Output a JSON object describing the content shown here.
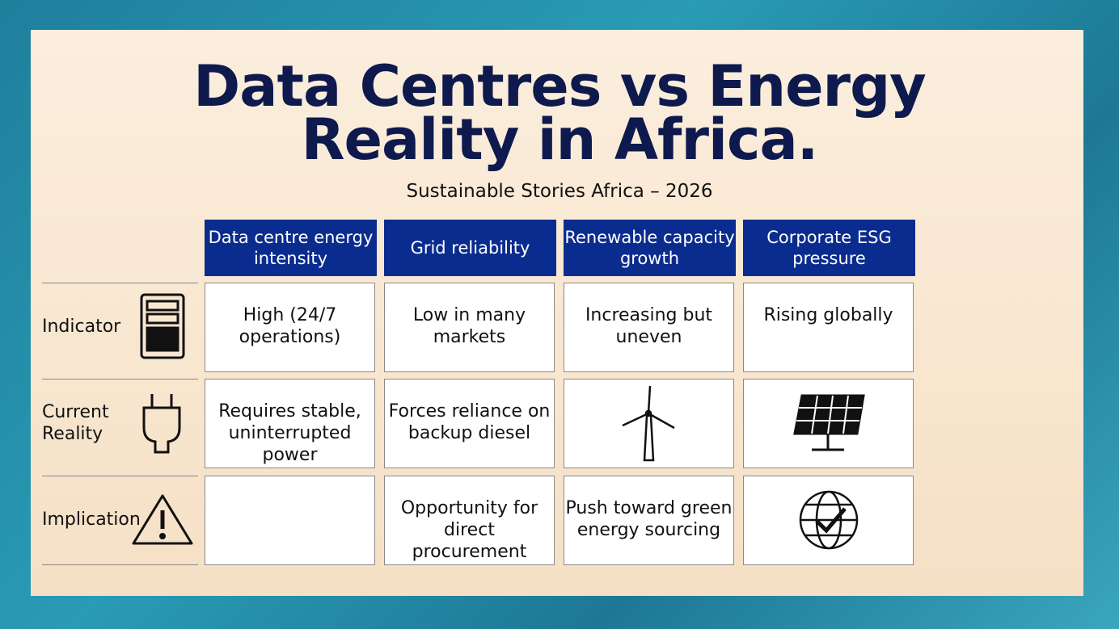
{
  "header": {
    "title": [
      "Data Centres vs Energy",
      "Reality in Africa."
    ],
    "subtitle": "Sustainable Stories Africa – 2026"
  },
  "table": {
    "columns": [
      "Data centre energy intensity",
      "Grid reliability",
      "Renewable capacity growth",
      "Corporate ESG pressure"
    ],
    "rows": [
      {
        "label": "Indicator",
        "cells": [
          "High (24/7 operations)",
          "Low in many markets",
          "Increasing but uneven",
          "Rising globally"
        ]
      },
      {
        "label": "Current Reality",
        "cells": [
          "Requires stable, uninterrupted power",
          "Forces reliance on backup diesel",
          null,
          null
        ]
      },
      {
        "label": "Implication",
        "cells": [
          null,
          "Opportunity for direct procurement",
          "Push toward green energy sourcing",
          null
        ]
      }
    ]
  }
}
